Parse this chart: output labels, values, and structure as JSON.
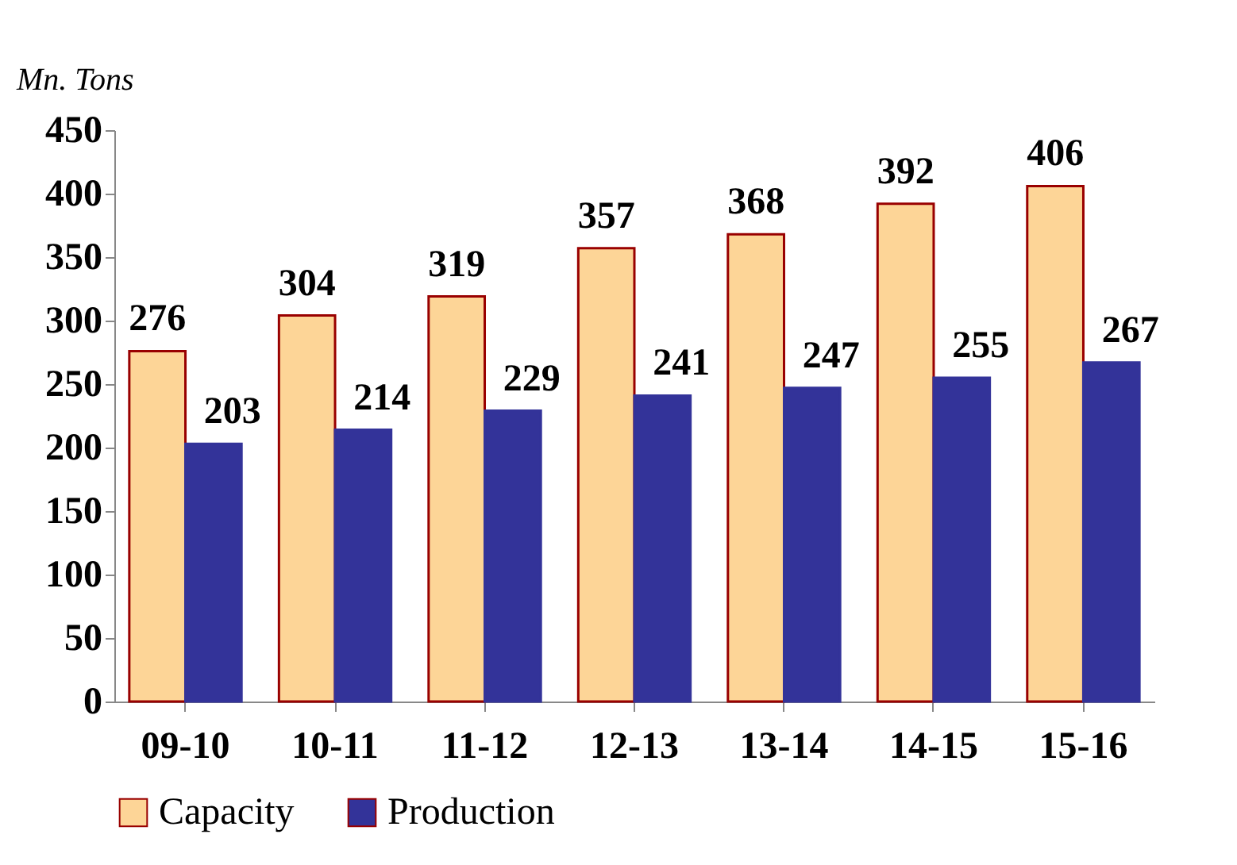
{
  "chart_data": {
    "type": "bar",
    "ylabel": "Mn. Tons",
    "categories": [
      "09-10",
      "10-11",
      "11-12",
      "12-13",
      "13-14",
      "14-15",
      "15-16"
    ],
    "series": [
      {
        "name": "Capacity",
        "color": "#fdd597",
        "values": [
          276,
          304,
          319,
          357,
          368,
          392,
          406
        ]
      },
      {
        "name": "Production",
        "color": "#333399",
        "values": [
          203,
          214,
          229,
          241,
          247,
          255,
          267
        ]
      }
    ],
    "ylim": [
      0,
      450
    ],
    "yticks": [
      0,
      50,
      100,
      150,
      200,
      250,
      300,
      350,
      400,
      450
    ],
    "data_labels": true,
    "grid": false,
    "legend": "bottom"
  }
}
